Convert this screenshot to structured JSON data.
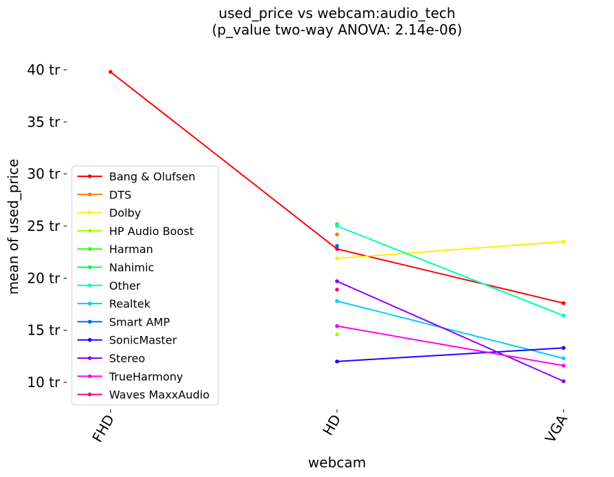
{
  "chart_data": {
    "type": "line",
    "title": "used_price vs webcam:audio_tech",
    "subtitle": "(p_value two-way ANOVA: 2.14e-06)",
    "xlabel": "webcam",
    "ylabel": "mean of used_price",
    "categories": [
      "FHD",
      "HD",
      "VGA"
    ],
    "yticks": [
      10,
      15,
      20,
      25,
      30,
      35,
      40
    ],
    "ytick_labels": [
      "10 tr",
      "15 tr",
      "20 tr",
      "25 tr",
      "30 tr",
      "35 tr",
      "40 tr"
    ],
    "ylim": [
      7.5,
      41.5
    ],
    "legend_position": "lower-left",
    "series": [
      {
        "name": "Bang & Olufsen",
        "color": "#ff0000",
        "values": [
          39.8,
          22.8,
          17.6
        ]
      },
      {
        "name": "DTS",
        "color": "#ff7700",
        "values": [
          null,
          24.2,
          null
        ]
      },
      {
        "name": "Dolby",
        "color": "#ffee00",
        "values": [
          null,
          21.9,
          23.5
        ]
      },
      {
        "name": "HP Audio Boost",
        "color": "#99ff00",
        "values": [
          null,
          14.6,
          null
        ]
      },
      {
        "name": "Harman",
        "color": "#33ff00",
        "values": [
          null,
          25.2,
          null
        ]
      },
      {
        "name": "Nahimic",
        "color": "#00ff44",
        "values": [
          null,
          25.1,
          null
        ]
      },
      {
        "name": "Other",
        "color": "#00ffaa",
        "values": [
          null,
          25.0,
          16.4
        ]
      },
      {
        "name": "Realtek",
        "color": "#00ccff",
        "values": [
          null,
          17.8,
          12.3
        ]
      },
      {
        "name": "Smart AMP",
        "color": "#0066ff",
        "values": [
          null,
          23.1,
          null
        ]
      },
      {
        "name": "SonicMaster",
        "color": "#2200ff",
        "values": [
          null,
          12.0,
          13.3
        ]
      },
      {
        "name": "Stereo",
        "color": "#8800ff",
        "values": [
          null,
          19.7,
          10.1
        ]
      },
      {
        "name": "TrueHarmony",
        "color": "#ff00ee",
        "values": [
          null,
          15.4,
          11.6
        ]
      },
      {
        "name": "Waves MaxxAudio",
        "color": "#ff0088",
        "values": [
          null,
          18.9,
          null
        ]
      }
    ]
  }
}
